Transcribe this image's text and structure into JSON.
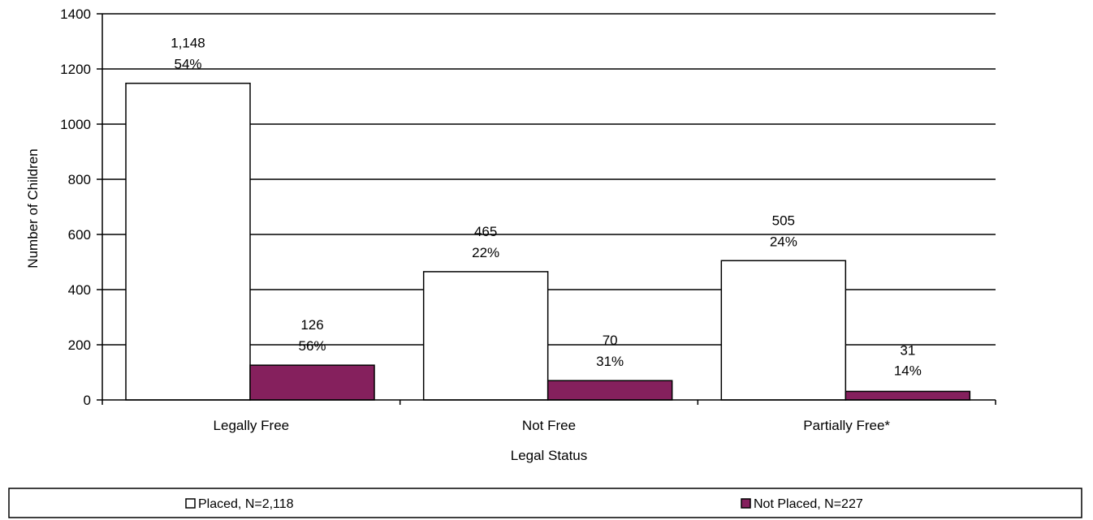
{
  "chart_data": {
    "type": "bar",
    "categories": [
      "Legally Free",
      "Not Free",
      "Partially Free*"
    ],
    "series": [
      {
        "name": "Placed, N=2,118",
        "values": [
          1148,
          465,
          505
        ],
        "labels": [
          "1,148",
          "465",
          "505"
        ],
        "percents": [
          "54%",
          "22%",
          "24%"
        ],
        "color": "#ffffff"
      },
      {
        "name": "Not Placed, N=227",
        "values": [
          126,
          70,
          31
        ],
        "labels": [
          "126",
          "70",
          "31"
        ],
        "percents": [
          "56%",
          "31%",
          "14%"
        ],
        "color": "#85205d"
      }
    ],
    "xlabel": "Legal Status",
    "ylabel": "Number of Children",
    "ylim": [
      0,
      1400
    ],
    "yticks": [
      0,
      200,
      400,
      600,
      800,
      1000,
      1200,
      1400
    ],
    "grid": true,
    "legend": "bottom"
  }
}
